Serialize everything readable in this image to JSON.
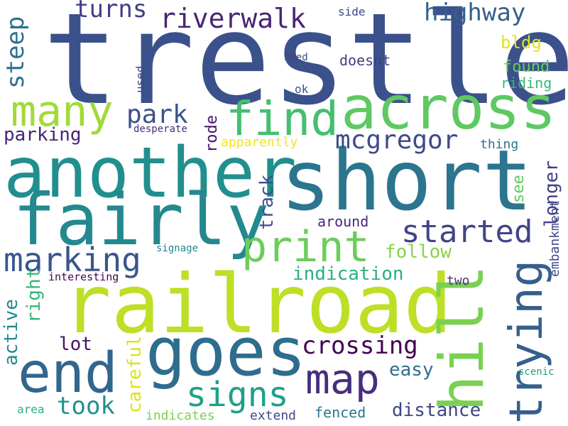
{
  "words": [
    {
      "text": "trestle",
      "color": "#3b518b"
    },
    {
      "text": "short",
      "color": "#2b758e"
    },
    {
      "text": "another",
      "color": "#218f8d"
    },
    {
      "text": "fairly",
      "color": "#23898e"
    },
    {
      "text": "railroad",
      "color": "#bddf26"
    },
    {
      "text": "across",
      "color": "#5ec962"
    },
    {
      "text": "hill",
      "color": "#7ad151"
    },
    {
      "text": "goes",
      "color": "#2e6d8e"
    },
    {
      "text": "end",
      "color": "#31668e"
    },
    {
      "text": "find",
      "color": "#44bf70"
    },
    {
      "text": "print",
      "color": "#6ccd5a"
    },
    {
      "text": "many",
      "color": "#a2da37"
    },
    {
      "text": "trying",
      "color": "#355f8d"
    },
    {
      "text": "map",
      "color": "#472e7c"
    },
    {
      "text": "signs",
      "color": "#1fa088"
    },
    {
      "text": "marking",
      "color": "#39568c"
    },
    {
      "text": "started",
      "color": "#414487"
    },
    {
      "text": "riverwalk",
      "color": "#482576"
    },
    {
      "text": "mcgregor",
      "color": "#3e4a89"
    },
    {
      "text": "crossing",
      "color": "#440154"
    },
    {
      "text": "park",
      "color": "#3b528b"
    },
    {
      "text": "highway",
      "color": "#355f8d"
    },
    {
      "text": "turns",
      "color": "#433e85"
    },
    {
      "text": "took",
      "color": "#21918c"
    },
    {
      "text": "steep",
      "color": "#2d708e"
    },
    {
      "text": "parking",
      "color": "#482374"
    },
    {
      "text": "right",
      "color": "#34b679"
    },
    {
      "text": "active",
      "color": "#238a8d"
    },
    {
      "text": "lot",
      "color": "#471365"
    },
    {
      "text": "careful",
      "color": "#dde318"
    },
    {
      "text": "distance",
      "color": "#3f4788"
    },
    {
      "text": "easy",
      "color": "#2e6e8e"
    },
    {
      "text": "follow",
      "color": "#86d549"
    },
    {
      "text": "indication",
      "color": "#2ab07f"
    },
    {
      "text": "track",
      "color": "#3d4e8a"
    },
    {
      "text": "rode",
      "color": "#481467"
    },
    {
      "text": "longer",
      "color": "#424086"
    },
    {
      "text": "see",
      "color": "#5ec962"
    },
    {
      "text": "found",
      "color": "#65cb5e"
    },
    {
      "text": "bldg",
      "color": "#e2e418"
    },
    {
      "text": "riding",
      "color": "#35b779"
    },
    {
      "text": "fenced",
      "color": "#2a788e"
    },
    {
      "text": "embankment",
      "color": "#3e4989"
    },
    {
      "text": "apparently",
      "color": "#f1e51d"
    },
    {
      "text": "doesnt",
      "color": "#433e85"
    },
    {
      "text": "thing",
      "color": "#2c728e"
    },
    {
      "text": "around",
      "color": "#482878"
    },
    {
      "text": "two",
      "color": "#46337e"
    },
    {
      "text": "used",
      "color": "#404588"
    },
    {
      "text": "desperate",
      "color": "#472c7a"
    },
    {
      "text": "need",
      "color": "#414487"
    },
    {
      "text": "ok",
      "color": "#3c508b"
    },
    {
      "text": "side",
      "color": "#3f4889"
    },
    {
      "text": "signage",
      "color": "#25858e"
    },
    {
      "text": "interesting",
      "color": "#440154"
    },
    {
      "text": "indicates",
      "color": "#7ad151"
    },
    {
      "text": "extend",
      "color": "#3e4a89"
    },
    {
      "text": "area",
      "color": "#2ab07f"
    },
    {
      "text": "scenic",
      "color": "#1fa187"
    }
  ]
}
